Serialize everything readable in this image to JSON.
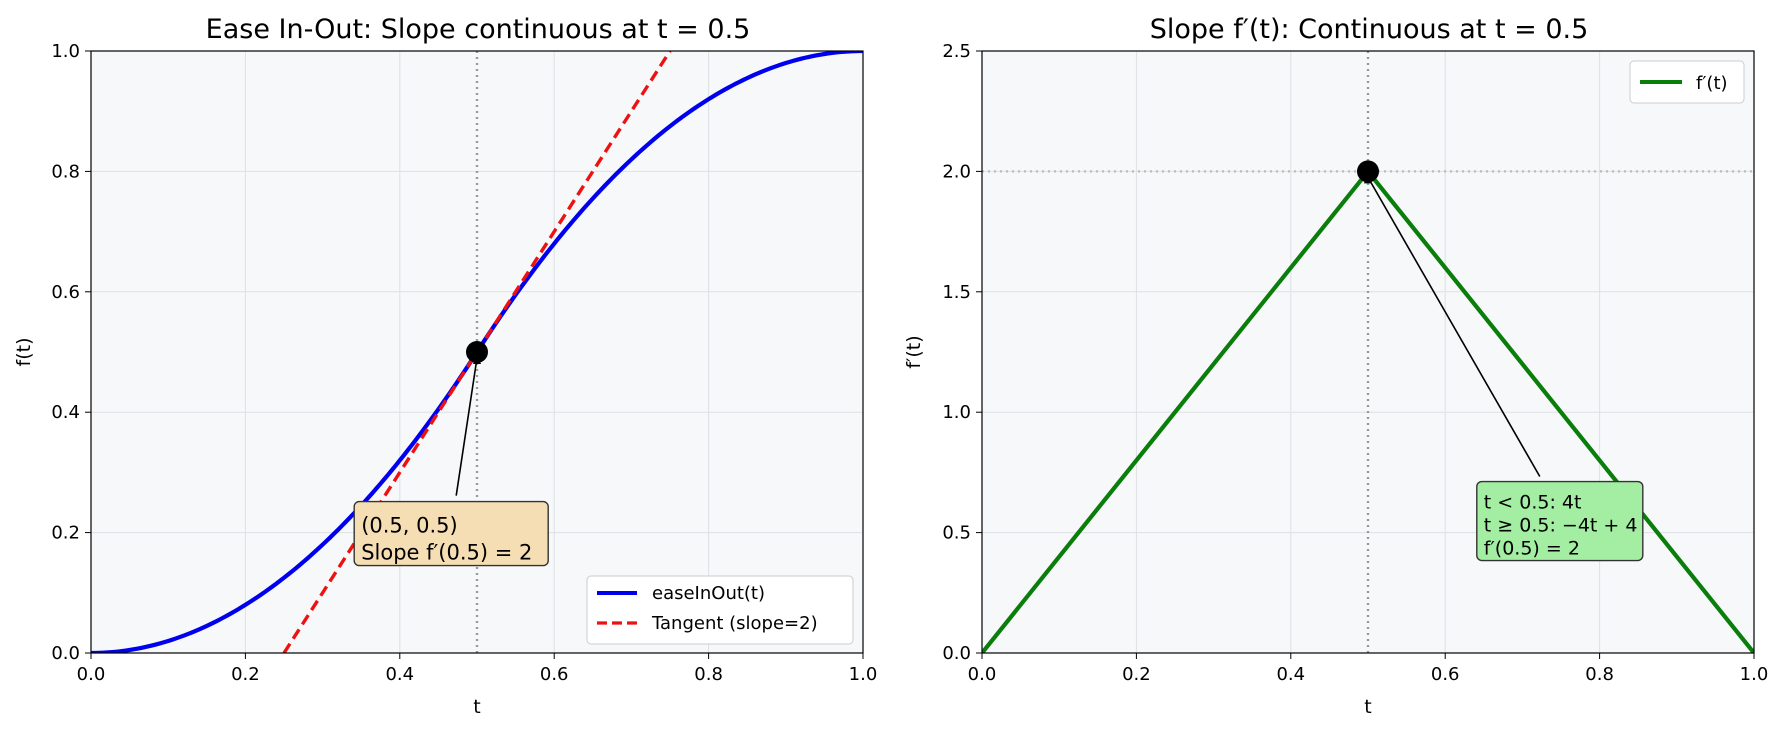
{
  "chart_data": [
    {
      "type": "line",
      "title": "Ease In-Out: Slope continuous at t = 0.5",
      "xlabel": "t",
      "ylabel": "f(t)",
      "xlim": [
        0,
        1
      ],
      "ylim": [
        0,
        1
      ],
      "xticks": [
        "0.0",
        "0.2",
        "0.4",
        "0.6",
        "0.8",
        "1.0"
      ],
      "yticks": [
        "0.0",
        "0.2",
        "0.4",
        "0.6",
        "0.8",
        "1.0"
      ],
      "grid": true,
      "legend_position": "lower-right",
      "series": [
        {
          "name": "easeInOut(t)",
          "color": "#0000ee",
          "style": "solid",
          "x": [
            0,
            0.05,
            0.1,
            0.15,
            0.2,
            0.25,
            0.3,
            0.35,
            0.4,
            0.45,
            0.5,
            0.55,
            0.6,
            0.65,
            0.7,
            0.75,
            0.8,
            0.85,
            0.9,
            0.95,
            1
          ],
          "y": [
            0,
            0.005,
            0.02,
            0.045,
            0.08,
            0.125,
            0.18,
            0.245,
            0.32,
            0.405,
            0.5,
            0.595,
            0.68,
            0.755,
            0.82,
            0.875,
            0.92,
            0.955,
            0.98,
            0.995,
            1
          ]
        },
        {
          "name": "Tangent (slope=2)",
          "color": "#ee1111",
          "style": "dashed",
          "x": [
            0.25,
            0.75
          ],
          "y": [
            0,
            1
          ]
        }
      ],
      "vline": {
        "x": 0.5,
        "color": "#999999",
        "style": "dotted"
      },
      "marker": {
        "x": 0.5,
        "y": 0.5
      },
      "annotation": {
        "line1": "(0.5, 0.5)",
        "line2": "Slope f′(0.5) = 2",
        "text_x": 0.35,
        "text_y": 0.2,
        "box_color": "#f5deb3"
      }
    },
    {
      "type": "line",
      "title": "Slope f′(t): Continuous at t = 0.5",
      "xlabel": "t",
      "ylabel": "f′(t)",
      "xlim": [
        0,
        1
      ],
      "ylim": [
        0,
        2.5
      ],
      "xticks": [
        "0.0",
        "0.2",
        "0.4",
        "0.6",
        "0.8",
        "1.0"
      ],
      "yticks": [
        "0.0",
        "0.5",
        "1.0",
        "1.5",
        "2.0",
        "2.5"
      ],
      "grid": true,
      "legend_position": "upper-right",
      "series": [
        {
          "name": "f′(t)",
          "color": "#0a7d0a",
          "style": "solid",
          "x": [
            0,
            0.5,
            1
          ],
          "y": [
            0,
            2,
            0
          ]
        }
      ],
      "vline": {
        "x": 0.5,
        "color": "#999999",
        "style": "dotted"
      },
      "hline": {
        "y": 2,
        "color": "#bbbbbb",
        "style": "dotted"
      },
      "marker": {
        "x": 0.5,
        "y": 2
      },
      "annotation": {
        "line1": "t < 0.5: 4t",
        "line2": "t ≥ 0.5: −4t + 4",
        "line3": "f′(0.5) = 2",
        "text_x": 0.65,
        "text_y": 0.6,
        "box_color": "#a3eea3"
      }
    }
  ]
}
